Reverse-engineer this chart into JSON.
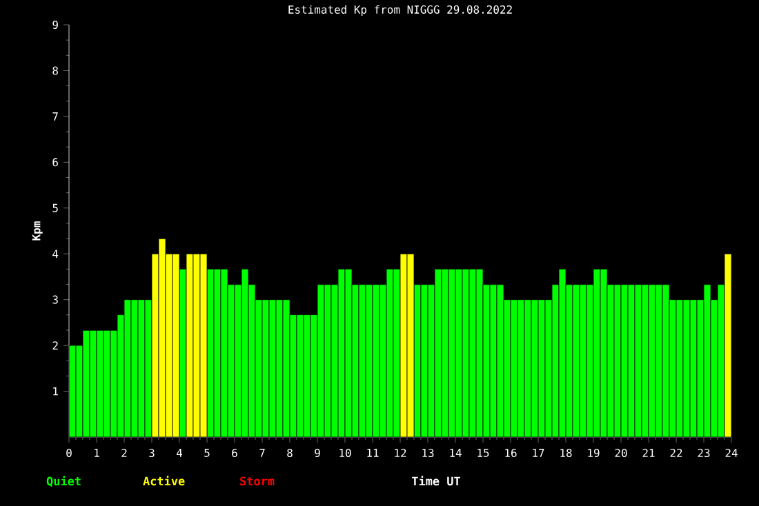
{
  "chart_data": {
    "type": "bar",
    "title": "Estimated Kp from NIGGG 29.08.2022",
    "xlabel": "Time UT",
    "ylabel": "Kpm",
    "x": [
      0.125,
      0.375,
      0.625,
      0.875,
      1.125,
      1.375,
      1.625,
      1.875,
      2.125,
      2.375,
      2.625,
      2.875,
      3.125,
      3.375,
      3.625,
      3.875,
      4.125,
      4.375,
      4.625,
      4.875,
      5.125,
      5.375,
      5.625,
      5.875,
      6.125,
      6.375,
      6.625,
      6.875,
      7.125,
      7.375,
      7.625,
      7.875,
      8.125,
      8.375,
      8.625,
      8.875,
      9.125,
      9.375,
      9.625,
      9.875,
      10.125,
      10.375,
      10.625,
      10.875,
      11.125,
      11.375,
      11.625,
      11.875,
      12.125,
      12.375,
      12.625,
      12.875,
      13.125,
      13.375,
      13.625,
      13.875,
      14.125,
      14.375,
      14.625,
      14.875,
      15.125,
      15.375,
      15.625,
      15.875,
      16.125,
      16.375,
      16.625,
      16.875,
      17.125,
      17.375,
      17.625,
      17.875,
      18.125,
      18.375,
      18.625,
      18.875,
      19.125,
      19.375,
      19.625,
      19.875,
      20.125,
      20.375,
      20.625,
      20.875,
      21.125,
      21.375,
      21.625,
      21.875,
      22.125,
      22.375,
      22.625,
      22.875,
      23.125,
      23.375,
      23.625,
      23.875
    ],
    "series": [
      {
        "name": "Quiet",
        "color": "#00ff00",
        "values": [
          2,
          2,
          2.33,
          2.33,
          2.33,
          2.33,
          2.33,
          2.67,
          3,
          3,
          3,
          3,
          null,
          null,
          null,
          null,
          3.67,
          null,
          null,
          null,
          3.67,
          3.67,
          3.67,
          3.33,
          3.33,
          3.67,
          3.33,
          3,
          3,
          3,
          3,
          3,
          2.67,
          2.67,
          2.67,
          2.67,
          3.33,
          3.33,
          3.33,
          3.67,
          3.67,
          3.33,
          3.33,
          3.33,
          3.33,
          3.33,
          3.67,
          3.67,
          null,
          null,
          3.33,
          3.33,
          3.33,
          3.67,
          3.67,
          3.67,
          3.67,
          3.67,
          3.67,
          3.67,
          3.33,
          3.33,
          3.33,
          3,
          3,
          3,
          3,
          3,
          3,
          3,
          3.33,
          3.67,
          3.33,
          3.33,
          3.33,
          3.33,
          3.67,
          3.67,
          3.33,
          3.33,
          3.33,
          3.33,
          3.33,
          3.33,
          3.33,
          3.33,
          3.33,
          3,
          3,
          3,
          3,
          3,
          3.33,
          3,
          3.33,
          null
        ]
      },
      {
        "name": "Active",
        "color": "#ffff00",
        "values": [
          null,
          null,
          null,
          null,
          null,
          null,
          null,
          null,
          null,
          null,
          null,
          null,
          4,
          4.33,
          4,
          4,
          null,
          4,
          4,
          4,
          null,
          null,
          null,
          null,
          null,
          null,
          null,
          null,
          null,
          null,
          null,
          null,
          null,
          null,
          null,
          null,
          null,
          null,
          null,
          null,
          null,
          null,
          null,
          null,
          null,
          null,
          null,
          null,
          4,
          4,
          null,
          null,
          null,
          null,
          null,
          null,
          null,
          null,
          null,
          null,
          null,
          null,
          null,
          null,
          null,
          null,
          null,
          null,
          null,
          null,
          null,
          null,
          null,
          null,
          null,
          null,
          null,
          null,
          null,
          null,
          null,
          null,
          null,
          null,
          null,
          null,
          null,
          null,
          null,
          null,
          null,
          null,
          null,
          null,
          null,
          4
        ]
      },
      {
        "name": "Storm",
        "color": "#ff0000",
        "values": [
          null,
          null,
          null,
          null,
          null,
          null,
          null,
          null,
          null,
          null,
          null,
          null,
          null,
          null,
          null,
          null,
          null,
          null,
          null,
          null,
          null,
          null,
          null,
          null,
          null,
          null,
          null,
          null,
          null,
          null,
          null,
          null,
          null,
          null,
          null,
          null,
          null,
          null,
          null,
          null,
          null,
          null,
          null,
          null,
          null,
          null,
          null,
          null,
          null,
          null,
          null,
          null,
          null,
          null,
          null,
          null,
          null,
          null,
          null,
          null,
          null,
          null,
          null,
          null,
          null,
          null,
          null,
          null,
          null,
          null,
          null,
          null,
          null,
          null,
          null,
          null,
          null,
          null,
          null,
          null,
          null,
          null,
          null,
          null,
          null,
          null,
          null,
          null,
          null,
          null,
          null,
          null,
          null,
          null,
          null,
          null
        ]
      }
    ],
    "xlim": [
      0,
      24
    ],
    "ylim": [
      0,
      9
    ],
    "xticks": [
      0,
      1,
      2,
      3,
      4,
      5,
      6,
      7,
      8,
      9,
      10,
      11,
      12,
      13,
      14,
      15,
      16,
      17,
      18,
      19,
      20,
      21,
      22,
      23,
      24
    ],
    "yticks": [
      1,
      2,
      3,
      4,
      5,
      6,
      7,
      8,
      9
    ],
    "legend": "bottom"
  }
}
